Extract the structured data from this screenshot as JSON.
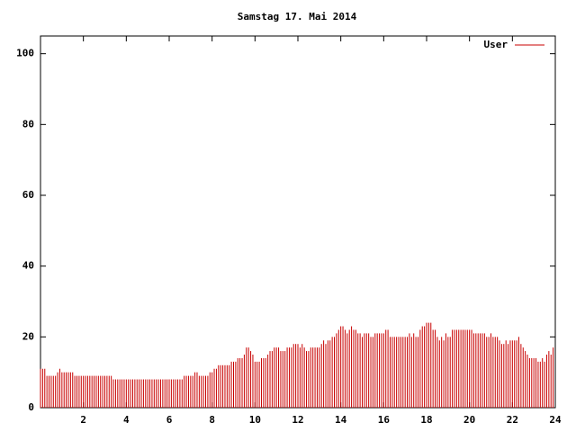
{
  "chart_data": {
    "type": "impulses",
    "title": "Samstag 17. Mai 2014",
    "legend": "top right",
    "grid": false,
    "xlim": [
      0,
      24
    ],
    "xticks": [
      2,
      4,
      6,
      8,
      10,
      12,
      14,
      16,
      18,
      20,
      22,
      24
    ],
    "ylim": [
      0,
      105
    ],
    "yticks": [
      0,
      20,
      40,
      60,
      80,
      100
    ],
    "x": [
      0,
      0.1,
      0.2,
      0.3,
      0.4,
      0.5,
      0.6,
      0.7,
      0.8,
      0.9,
      1,
      1.1,
      1.2,
      1.3,
      1.4,
      1.5,
      1.6,
      1.7,
      1.8,
      1.9,
      2,
      2.1,
      2.2,
      2.3,
      2.4,
      2.5,
      2.6,
      2.7,
      2.8,
      2.9,
      3,
      3.1,
      3.2,
      3.3,
      3.4,
      3.5,
      3.6,
      3.7,
      3.8,
      3.9,
      4,
      4.1,
      4.2,
      4.3,
      4.4,
      4.5,
      4.6,
      4.7,
      4.8,
      4.9,
      5,
      5.1,
      5.2,
      5.3,
      5.4,
      5.5,
      5.6,
      5.7,
      5.8,
      5.9,
      6,
      6.1,
      6.2,
      6.3,
      6.4,
      6.5,
      6.6,
      6.7,
      6.8,
      6.9,
      7,
      7.1,
      7.2,
      7.3,
      7.4,
      7.5,
      7.6,
      7.7,
      7.8,
      7.9,
      8,
      8.1,
      8.2,
      8.3,
      8.4,
      8.5,
      8.6,
      8.7,
      8.8,
      8.9,
      9,
      9.1,
      9.2,
      9.3,
      9.4,
      9.5,
      9.6,
      9.7,
      9.8,
      9.9,
      10,
      10.1,
      10.2,
      10.3,
      10.4,
      10.5,
      10.6,
      10.7,
      10.8,
      10.9,
      11,
      11.1,
      11.2,
      11.3,
      11.4,
      11.5,
      11.6,
      11.7,
      11.8,
      11.9,
      12,
      12.1,
      12.2,
      12.3,
      12.4,
      12.5,
      12.6,
      12.7,
      12.8,
      12.9,
      13,
      13.1,
      13.2,
      13.3,
      13.4,
      13.5,
      13.6,
      13.7,
      13.8,
      13.9,
      14,
      14.1,
      14.2,
      14.3,
      14.4,
      14.5,
      14.6,
      14.7,
      14.8,
      14.9,
      15,
      15.1,
      15.2,
      15.3,
      15.4,
      15.5,
      15.6,
      15.7,
      15.8,
      15.9,
      16,
      16.1,
      16.2,
      16.3,
      16.4,
      16.5,
      16.6,
      16.7,
      16.8,
      16.9,
      17,
      17.1,
      17.2,
      17.3,
      17.4,
      17.5,
      17.6,
      17.7,
      17.8,
      17.9,
      18,
      18.1,
      18.2,
      18.3,
      18.4,
      18.5,
      18.6,
      18.7,
      18.8,
      18.9,
      19,
      19.1,
      19.2,
      19.3,
      19.4,
      19.5,
      19.6,
      19.7,
      19.8,
      19.9,
      20,
      20.1,
      20.2,
      20.3,
      20.4,
      20.5,
      20.6,
      20.7,
      20.8,
      20.9,
      21,
      21.1,
      21.2,
      21.3,
      21.4,
      21.5,
      21.6,
      21.7,
      21.8,
      21.9,
      22,
      22.1,
      22.2,
      22.3,
      22.4,
      22.5,
      22.6,
      22.7,
      22.8,
      22.9,
      23,
      23.1,
      23.2,
      23.3,
      23.4,
      23.5,
      23.6,
      23.7,
      23.8,
      23.9
    ],
    "series": [
      {
        "name": "User",
        "color": "#c80000",
        "values": [
          11,
          11,
          11,
          9,
          9,
          9,
          9,
          9,
          10,
          11,
          10,
          10,
          10,
          10,
          10,
          10,
          9,
          9,
          9,
          9,
          9,
          9,
          9,
          9,
          9,
          9,
          9,
          9,
          9,
          9,
          9,
          9,
          9,
          9,
          8,
          8,
          8,
          8,
          8,
          8,
          8,
          8,
          8,
          8,
          8,
          8,
          8,
          8,
          8,
          8,
          8,
          8,
          8,
          8,
          8,
          8,
          8,
          8,
          8,
          8,
          8,
          8,
          8,
          8,
          8,
          8,
          8,
          9,
          9,
          9,
          9,
          9,
          10,
          10,
          9,
          9,
          9,
          9,
          9,
          10,
          10,
          11,
          11,
          12,
          12,
          12,
          12,
          12,
          12,
          13,
          13,
          13,
          14,
          14,
          14,
          15,
          17,
          17,
          16,
          15,
          13,
          13,
          13,
          14,
          14,
          14,
          15,
          16,
          16,
          17,
          17,
          17,
          16,
          16,
          16,
          17,
          17,
          17,
          18,
          18,
          18,
          17,
          18,
          17,
          16,
          16,
          17,
          17,
          17,
          17,
          17,
          18,
          19,
          18,
          19,
          19,
          20,
          20,
          21,
          22,
          23,
          23,
          22,
          21,
          22,
          23,
          22,
          22,
          21,
          21,
          20,
          21,
          21,
          21,
          20,
          20,
          21,
          21,
          21,
          21,
          21,
          22,
          22,
          20,
          20,
          20,
          20,
          20,
          20,
          20,
          20,
          20,
          21,
          20,
          21,
          20,
          20,
          22,
          23,
          23,
          24,
          24,
          24,
          22,
          22,
          20,
          19,
          20,
          19,
          21,
          20,
          20,
          22,
          22,
          22,
          22,
          22,
          22,
          22,
          22,
          22,
          22,
          21,
          21,
          21,
          21,
          21,
          21,
          20,
          20,
          21,
          20,
          20,
          20,
          19,
          18,
          18,
          19,
          18,
          19,
          19,
          19,
          19,
          20,
          18,
          17,
          16,
          15,
          14,
          14,
          14,
          14,
          13,
          13,
          14,
          13,
          15,
          16,
          15,
          17
        ]
      }
    ]
  }
}
